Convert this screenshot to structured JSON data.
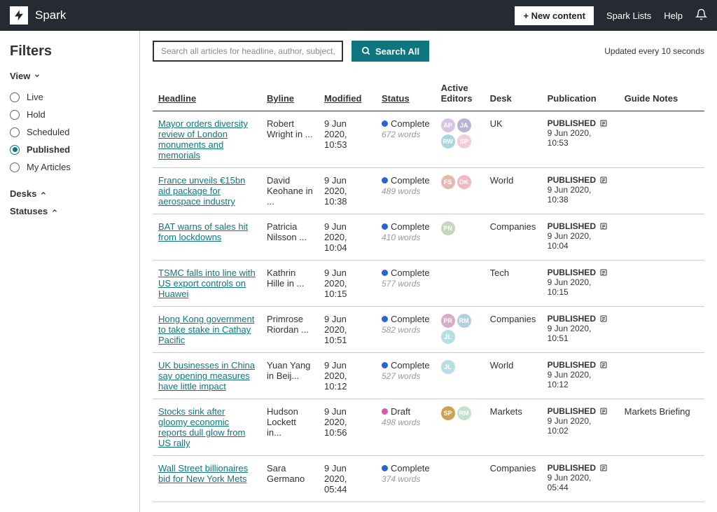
{
  "topbar": {
    "app_name": "Spark",
    "new_content": "+ New content",
    "spark_lists": "Spark Lists",
    "help": "Help"
  },
  "sidebar": {
    "filters_title": "Filters",
    "view_label": "View",
    "desks_label": "Desks",
    "statuses_label": "Statuses",
    "view_items": [
      {
        "label": "Live",
        "selected": false
      },
      {
        "label": "Hold",
        "selected": false
      },
      {
        "label": "Scheduled",
        "selected": false
      },
      {
        "label": "Published",
        "selected": true
      },
      {
        "label": "My Articles",
        "selected": false
      }
    ]
  },
  "search": {
    "placeholder": "Search all articles for headline, author, subject, or UUID",
    "button": "Search All",
    "updated": "Updated every 10 seconds"
  },
  "columns": {
    "headline": "Headline",
    "byline": "Byline",
    "modified": "Modified",
    "status": "Status",
    "editors": "Active Editors",
    "desk": "Desk",
    "publication": "Publication",
    "notes": "Guide Notes"
  },
  "status_colors": {
    "complete": "#2765cf",
    "draft": "#d957a7"
  },
  "editor_colors": {
    "AP": "#d9c5e3",
    "JA": "#b9b3d6",
    "RW": "#a7d6df",
    "SP": "#f1cdd9",
    "FS": "#e3b9b0",
    "DK": "#f0b8c2",
    "PN": "#c7d6b8",
    "PR": "#d9adc7",
    "RM": "#b0d0e0",
    "JL": "#b8dde5",
    "SP2": "#d0a050",
    "RM2": "#c2e2cd"
  },
  "rows": [
    {
      "headline": "Mayor orders diversity review of London monuments and memorials",
      "byline": "Robert Wright in ...",
      "modified": "9 Jun 2020, 10:53",
      "status": "Complete",
      "status_key": "complete",
      "words": "672 words",
      "editors": [
        {
          "t": "AP",
          "c": "#d9c5e3"
        },
        {
          "t": "JA",
          "c": "#b9b3d6"
        },
        {
          "t": "RW",
          "c": "#a7d6df"
        },
        {
          "t": "SP",
          "c": "#f1cdd9"
        }
      ],
      "desk": "UK",
      "pub_status": "PUBLISHED",
      "pub_date": "9 Jun 2020, 10:53",
      "notes": ""
    },
    {
      "headline": "France unveils €15bn aid package for aerospace industry",
      "byline": "David Keohane in ...",
      "modified": "9 Jun 2020, 10:38",
      "status": "Complete",
      "status_key": "complete",
      "words": "489 words",
      "editors": [
        {
          "t": "FS",
          "c": "#e3b9b0"
        },
        {
          "t": "DK",
          "c": "#f0b8c2"
        }
      ],
      "desk": "World",
      "pub_status": "PUBLISHED",
      "pub_date": "9 Jun 2020, 10:38",
      "notes": ""
    },
    {
      "headline": "BAT warns of sales hit from lockdowns",
      "byline": "Patricia Nilsson ...",
      "modified": "9 Jun 2020, 10:04",
      "status": "Complete",
      "status_key": "complete",
      "words": "410 words",
      "editors": [
        {
          "t": "PN",
          "c": "#c7d6b8"
        }
      ],
      "desk": "Companies",
      "pub_status": "PUBLISHED",
      "pub_date": "9 Jun 2020, 10:04",
      "notes": ""
    },
    {
      "headline": "TSMC falls into line with US export controls on Huawei",
      "byline": "Kathrin Hille in ...",
      "modified": "9 Jun 2020, 10:15",
      "status": "Complete",
      "status_key": "complete",
      "words": "577 words",
      "editors": [],
      "desk": "Tech",
      "pub_status": "PUBLISHED",
      "pub_date": "9 Jun 2020, 10:15",
      "notes": ""
    },
    {
      "headline": "Hong Kong government to take stake in Cathay Pacific",
      "byline": "Primrose Riordan ...",
      "modified": "9 Jun 2020, 10:51",
      "status": "Complete",
      "status_key": "complete",
      "words": "582 words",
      "editors": [
        {
          "t": "PR",
          "c": "#d9adc7"
        },
        {
          "t": "RM",
          "c": "#b0d0e0"
        },
        {
          "t": "JL",
          "c": "#b8dde5"
        }
      ],
      "desk": "Companies",
      "pub_status": "PUBLISHED",
      "pub_date": "9 Jun 2020, 10:51",
      "notes": ""
    },
    {
      "headline": "UK businesses in China say opening measures have little impact",
      "byline": "Yuan Yang in Beij...",
      "modified": "9 Jun 2020, 10:12",
      "status": "Complete",
      "status_key": "complete",
      "words": "527 words",
      "editors": [
        {
          "t": "JL",
          "c": "#b8dde5"
        }
      ],
      "desk": "World",
      "pub_status": "PUBLISHED",
      "pub_date": "9 Jun 2020, 10:12",
      "notes": ""
    },
    {
      "headline": "Stocks sink after gloomy economic reports dull glow from US rally",
      "byline": "Hudson Lockett in...",
      "modified": "9 Jun 2020, 10:56",
      "status": "Draft",
      "status_key": "draft",
      "words": "498 words",
      "editors": [
        {
          "t": "SP",
          "c": "#d0a050"
        },
        {
          "t": "RM",
          "c": "#c2e2cd"
        }
      ],
      "desk": "Markets",
      "pub_status": "PUBLISHED",
      "pub_date": "9 Jun 2020, 10:02",
      "notes": "Markets Briefing"
    },
    {
      "headline": "Wall Street billionaires bid for New York Mets",
      "byline": "Sara Germano",
      "modified": "9 Jun 2020, 05:44",
      "status": "Complete",
      "status_key": "complete",
      "words": "374 words",
      "editors": [],
      "desk": "Companies",
      "pub_status": "PUBLISHED",
      "pub_date": "9 Jun 2020, 05:44",
      "notes": ""
    }
  ]
}
